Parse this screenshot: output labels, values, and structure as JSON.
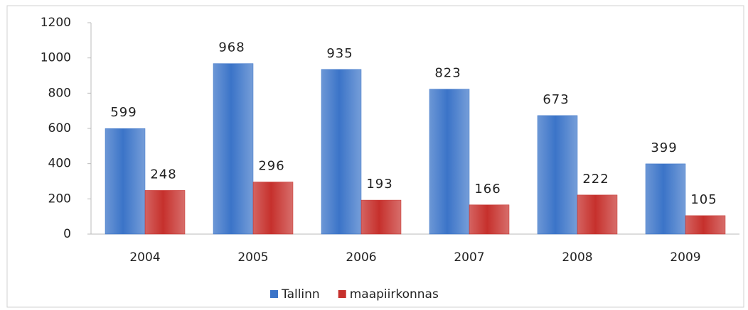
{
  "chart_data": {
    "type": "bar",
    "categories": [
      "2004",
      "2005",
      "2006",
      "2007",
      "2008",
      "2009"
    ],
    "series": [
      {
        "name": "Tallinn",
        "color": "#3b74c8",
        "values": [
          599,
          968,
          935,
          823,
          673,
          399
        ]
      },
      {
        "name": "maapiirkonnas",
        "color": "#c6302c",
        "values": [
          248,
          296,
          193,
          166,
          222,
          105
        ]
      }
    ],
    "ylim": [
      0,
      1200
    ],
    "yticks": [
      0,
      200,
      400,
      600,
      800,
      1000,
      1200
    ],
    "grid": false,
    "legend": "bottom"
  }
}
